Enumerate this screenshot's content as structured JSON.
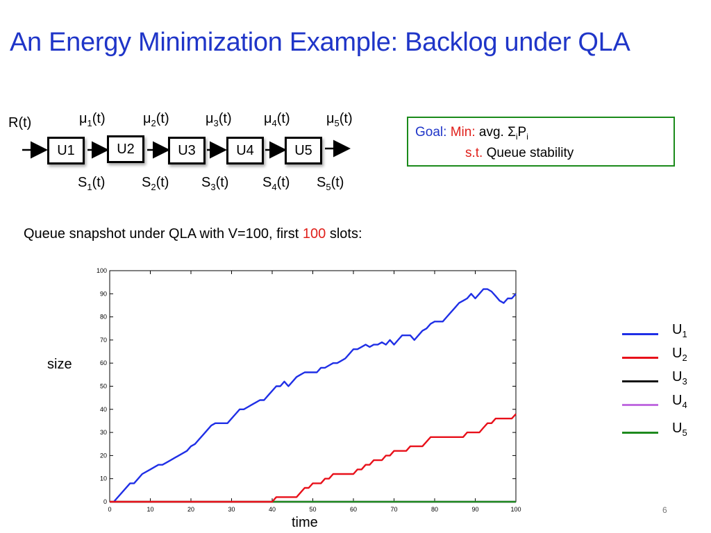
{
  "slide": {
    "title": "An Energy Minimization Example: Backlog under QLA",
    "page_number": "6",
    "queue_caption": {
      "before": "Queue snapshot under QLA with V=100, first ",
      "highlight": "100",
      "after": " slots:"
    },
    "highlight_color": "#e0201b"
  },
  "diagram": {
    "input_label": "R(t)",
    "queues": [
      "U1",
      "U2",
      "U3",
      "U4",
      "U5"
    ],
    "mu_labels": [
      {
        "base": "μ",
        "sub": "1",
        "tail": "(t)"
      },
      {
        "base": "μ",
        "sub": "2",
        "tail": "(t)"
      },
      {
        "base": "μ",
        "sub": "3",
        "tail": "(t)"
      },
      {
        "base": "μ",
        "sub": "4",
        "tail": "(t)"
      },
      {
        "base": "μ",
        "sub": "5",
        "tail": "(t)"
      }
    ],
    "s_labels": [
      {
        "base": "S",
        "sub": "1",
        "tail": "(t)"
      },
      {
        "base": "S",
        "sub": "2",
        "tail": "(t)"
      },
      {
        "base": "S",
        "sub": "3",
        "tail": "(t)"
      },
      {
        "base": "S",
        "sub": "4",
        "tail": "(t)"
      },
      {
        "base": "S",
        "sub": "5",
        "tail": "(t)"
      }
    ]
  },
  "goal": {
    "goal_label": "Goal:",
    "min_label": "Min:",
    "objective_prefix": "avg. Σ",
    "objective_sub1": "i",
    "objective_mid": "P",
    "objective_sub2": "i",
    "st_label": "s.t.",
    "constraint": "Queue stability",
    "colors": {
      "goal": "#1f35c8",
      "min": "#e0201b",
      "border": "#1a8a1a"
    }
  },
  "chart_data": {
    "type": "line",
    "title": "",
    "xlabel": "time",
    "ylabel": "size",
    "xlim": [
      0,
      100
    ],
    "ylim": [
      0,
      100
    ],
    "xticks": [
      0,
      10,
      20,
      30,
      40,
      50,
      60,
      70,
      80,
      90,
      100
    ],
    "yticks": [
      0,
      10,
      20,
      30,
      40,
      50,
      60,
      70,
      80,
      90,
      100
    ],
    "grid": false,
    "legend_position": "right",
    "series": [
      {
        "name": "U",
        "sub": "1",
        "color": "#1f2fe6",
        "x": [
          1,
          5,
          6,
          7,
          8,
          10,
          11,
          12,
          13,
          14,
          15,
          16,
          17,
          18,
          19,
          20,
          21,
          22,
          23,
          24,
          25,
          26,
          27,
          28,
          29,
          30,
          31,
          32,
          33,
          34,
          35,
          36,
          37,
          38,
          39,
          40,
          41,
          42,
          43,
          44,
          45,
          46,
          47,
          48,
          49,
          50,
          51,
          52,
          53,
          54,
          55,
          56,
          57,
          58,
          59,
          60,
          61,
          62,
          63,
          64,
          65,
          66,
          67,
          68,
          69,
          70,
          71,
          72,
          73,
          74,
          75,
          76,
          77,
          78,
          79,
          80,
          81,
          82,
          83,
          84,
          85,
          86,
          87,
          88,
          89,
          90,
          91,
          92,
          93,
          94,
          95,
          96,
          97,
          98,
          99,
          100
        ],
        "y": [
          0,
          8,
          8,
          10,
          12,
          14,
          15,
          16,
          16,
          17,
          18,
          19,
          20,
          21,
          22,
          24,
          25,
          27,
          29,
          31,
          33,
          34,
          34,
          34,
          34,
          36,
          38,
          40,
          40,
          41,
          42,
          43,
          44,
          44,
          46,
          48,
          50,
          50,
          52,
          50,
          52,
          54,
          55,
          56,
          56,
          56,
          56,
          58,
          58,
          59,
          60,
          60,
          61,
          62,
          64,
          66,
          66,
          67,
          68,
          67,
          68,
          68,
          69,
          68,
          70,
          68,
          70,
          72,
          72,
          72,
          70,
          72,
          74,
          75,
          77,
          78,
          78,
          78,
          80,
          82,
          84,
          86,
          87,
          88,
          90,
          88,
          90,
          92,
          92,
          91,
          89,
          87,
          86,
          88,
          88,
          90
        ]
      },
      {
        "name": "U",
        "sub": "2",
        "color": "#e8101a",
        "x": [
          0,
          40,
          41,
          46,
          47,
          48,
          49,
          50,
          51,
          52,
          53,
          54,
          55,
          56,
          57,
          58,
          59,
          60,
          61,
          62,
          63,
          64,
          65,
          66,
          67,
          68,
          69,
          70,
          71,
          72,
          73,
          74,
          75,
          76,
          77,
          78,
          79,
          80,
          81,
          82,
          83,
          84,
          85,
          86,
          87,
          88,
          89,
          90,
          91,
          92,
          93,
          94,
          95,
          96,
          97,
          98,
          99,
          100
        ],
        "y": [
          0,
          0,
          2,
          2,
          4,
          6,
          6,
          8,
          8,
          8,
          10,
          10,
          12,
          12,
          12,
          12,
          12,
          12,
          14,
          14,
          16,
          16,
          18,
          18,
          18,
          20,
          20,
          22,
          22,
          22,
          22,
          24,
          24,
          24,
          24,
          26,
          28,
          28,
          28,
          28,
          28,
          28,
          28,
          28,
          28,
          30,
          30,
          30,
          30,
          32,
          34,
          34,
          36,
          36,
          36,
          36,
          36,
          38
        ]
      },
      {
        "name": "U",
        "sub": "3",
        "color": "#111111",
        "x": [
          0,
          100
        ],
        "y": [
          0,
          0
        ]
      },
      {
        "name": "U",
        "sub": "4",
        "color": "#c06be0",
        "x": [
          0,
          100
        ],
        "y": [
          0,
          0
        ]
      },
      {
        "name": "U",
        "sub": "5",
        "color": "#1e8a1e",
        "x": [
          0,
          100
        ],
        "y": [
          0,
          0
        ]
      }
    ]
  }
}
